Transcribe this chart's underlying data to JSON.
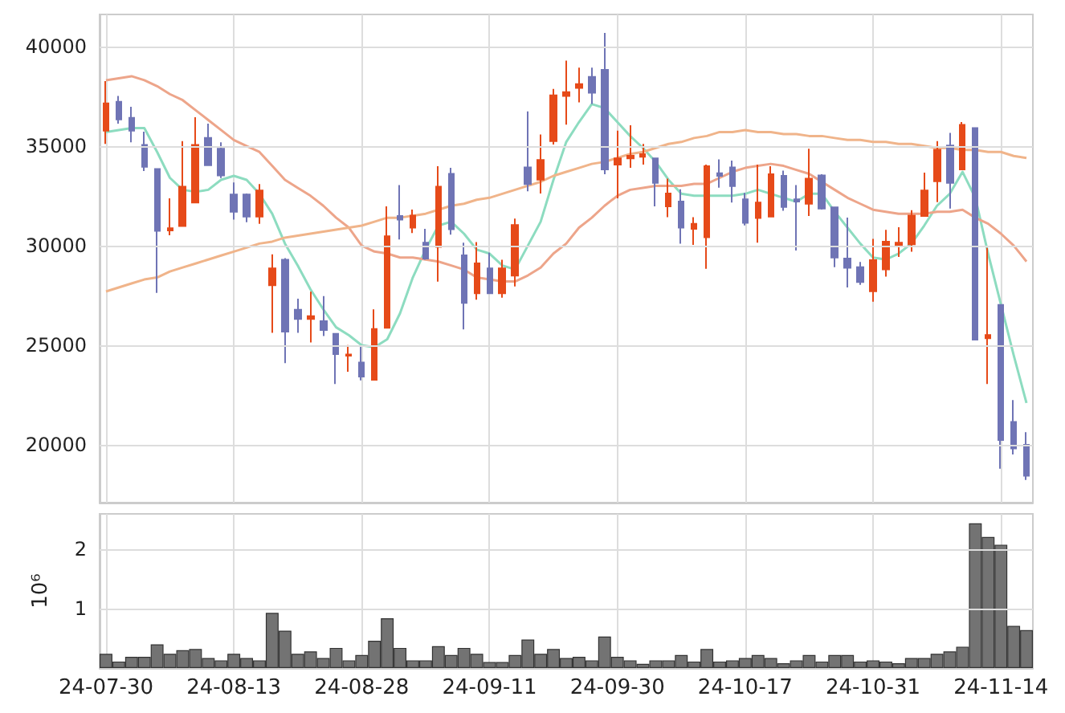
{
  "chart_data": [
    {
      "type": "candlestick",
      "categories": [
        null,
        null,
        null,
        null,
        null,
        null,
        null,
        null,
        null,
        null,
        null,
        null,
        null,
        null,
        null,
        null,
        null,
        null,
        null,
        null,
        null,
        null,
        null,
        null,
        null,
        null,
        null,
        null,
        null,
        null,
        null,
        null,
        null,
        null,
        null,
        null,
        null,
        null,
        null,
        null,
        null,
        null,
        null,
        null,
        null,
        null,
        null,
        null,
        null,
        null,
        null,
        null,
        null,
        null,
        null,
        null,
        null,
        null,
        null,
        null,
        null,
        null,
        null,
        null,
        null,
        null,
        null,
        null,
        null,
        null,
        null,
        null,
        null
      ],
      "ohlc": [
        [
          35770,
          38260,
          35100,
          37140
        ],
        [
          37220,
          37510,
          36120,
          36330
        ],
        [
          36410,
          36970,
          35180,
          35770
        ],
        [
          35050,
          35720,
          33740,
          33950
        ],
        [
          33840,
          33840,
          27630,
          30740
        ],
        [
          30760,
          32370,
          30520,
          30870
        ],
        [
          30980,
          35240,
          30980,
          32960
        ],
        [
          32160,
          36440,
          32160,
          35050
        ],
        [
          35400,
          36120,
          34030,
          34030
        ],
        [
          34860,
          35180,
          33390,
          33520
        ],
        [
          32560,
          33170,
          31300,
          31700
        ],
        [
          32560,
          32610,
          31170,
          31460
        ],
        [
          31460,
          33090,
          31090,
          32770
        ],
        [
          28010,
          29560,
          25620,
          28860
        ],
        [
          29290,
          29370,
          24100,
          25680
        ],
        [
          26780,
          27340,
          25620,
          26320
        ],
        [
          26320,
          27690,
          25140,
          26460
        ],
        [
          26210,
          27470,
          25460,
          25760
        ],
        [
          25570,
          25570,
          23050,
          24550
        ],
        [
          24470,
          25010,
          23670,
          24530
        ],
        [
          24130,
          24930,
          23240,
          23430
        ],
        [
          23270,
          26800,
          23270,
          25810
        ],
        [
          25870,
          31970,
          25870,
          30470
        ],
        [
          31490,
          33040,
          30310,
          31300
        ],
        [
          30900,
          31810,
          30630,
          31510
        ],
        [
          30150,
          30840,
          29290,
          29350
        ],
        [
          29930,
          33980,
          28190,
          32960
        ],
        [
          33600,
          33900,
          30550,
          30820
        ],
        [
          29510,
          30150,
          25790,
          27120
        ],
        [
          27610,
          30180,
          27280,
          29110
        ],
        [
          28860,
          29640,
          27610,
          27610
        ],
        [
          27610,
          29290,
          27390,
          28860
        ],
        [
          28490,
          31350,
          27950,
          31030
        ],
        [
          33920,
          36730,
          32720,
          33090
        ],
        [
          33310,
          35580,
          32610,
          34300
        ],
        [
          35240,
          37860,
          35070,
          37540
        ],
        [
          37510,
          39280,
          36070,
          37700
        ],
        [
          37910,
          38930,
          37190,
          38100
        ],
        [
          38470,
          38930,
          37110,
          37670
        ],
        [
          38820,
          40670,
          33580,
          33820
        ],
        [
          34060,
          35770,
          32370,
          34380
        ],
        [
          34380,
          36040,
          33900,
          34510
        ],
        [
          34460,
          35100,
          34060,
          34590
        ],
        [
          34380,
          34380,
          31970,
          33150
        ],
        [
          31970,
          33360,
          31430,
          32610
        ],
        [
          32210,
          32830,
          30100,
          30900
        ],
        [
          30840,
          31430,
          30040,
          31090
        ],
        [
          30420,
          34060,
          28840,
          33980
        ],
        [
          33630,
          34330,
          32910,
          33500
        ],
        [
          33920,
          34270,
          32160,
          32990
        ],
        [
          32320,
          32640,
          31010,
          31140
        ],
        [
          31380,
          34060,
          30150,
          32160
        ],
        [
          31460,
          33980,
          31460,
          33580
        ],
        [
          33500,
          33760,
          31750,
          31940
        ],
        [
          32320,
          33040,
          29750,
          32210
        ],
        [
          32100,
          34860,
          31490,
          33360
        ],
        [
          33520,
          33580,
          31810,
          31860
        ],
        [
          31920,
          31920,
          28920,
          29400
        ],
        [
          29350,
          31410,
          27900,
          28890
        ],
        [
          28920,
          29180,
          28030,
          28170
        ],
        [
          27710,
          30340,
          27180,
          29270
        ],
        [
          28810,
          30790,
          28440,
          30200
        ],
        [
          30040,
          30920,
          29430,
          30150
        ],
        [
          30070,
          31780,
          29690,
          31510
        ],
        [
          31490,
          33660,
          31490,
          32770
        ],
        [
          33230,
          35240,
          32180,
          34810
        ],
        [
          35020,
          35660,
          31860,
          33150
        ],
        [
          33820,
          36200,
          33820,
          36060
        ],
        [
          35900,
          35900,
          25280,
          25280
        ],
        [
          25350,
          29880,
          23050,
          25510
        ],
        [
          27020,
          27020,
          18800,
          20240
        ],
        [
          21150,
          22250,
          19520,
          19820
        ],
        [
          20000,
          20640,
          18240,
          18450
        ]
      ],
      "colors": [
        "#e64a19",
        "#6f74b5",
        "#6f74b5",
        "#6f74b5",
        "#6f74b5",
        "#e64a19",
        "#e64a19",
        "#e64a19",
        "#6f74b5",
        "#6f74b5",
        "#6f74b5",
        "#6f74b5",
        "#e64a19",
        "#e64a19",
        "#6f74b5",
        "#6f74b5",
        "#e64a19",
        "#6f74b5",
        "#6f74b5",
        "#e64a19",
        "#6f74b5",
        "#e64a19",
        "#e64a19",
        "#6f74b5",
        "#e64a19",
        "#6f74b5",
        "#e64a19",
        "#6f74b5",
        "#6f74b5",
        "#e64a19",
        "#6f74b5",
        "#e64a19",
        "#e64a19",
        "#6f74b5",
        "#e64a19",
        "#e64a19",
        "#e64a19",
        "#e64a19",
        "#6f74b5",
        "#6f74b5",
        "#e64a19",
        "#e64a19",
        "#e64a19",
        "#6f74b5",
        "#e64a19",
        "#6f74b5",
        "#e64a19",
        "#e64a19",
        "#6f74b5",
        "#6f74b5",
        "#6f74b5",
        "#e64a19",
        "#e64a19",
        "#6f74b5",
        "#6f74b5",
        "#e64a19",
        "#6f74b5",
        "#6f74b5",
        "#6f74b5",
        "#6f74b5",
        "#e64a19",
        "#e64a19",
        "#e64a19",
        "#e64a19",
        "#e64a19",
        "#e64a19",
        "#6f74b5",
        "#e64a19",
        "#6f74b5",
        "#e64a19",
        "#6f74b5",
        "#6f74b5",
        "#6f74b5"
      ],
      "series": [
        {
          "type": "line",
          "color": "#8ddcc0",
          "values": [
            35700,
            35800,
            35900,
            35900,
            34700,
            33400,
            32800,
            32700,
            32800,
            33300,
            33500,
            33300,
            32600,
            31600,
            30100,
            29000,
            27800,
            26800,
            25900,
            25500,
            25000,
            24900,
            25300,
            26600,
            28400,
            29800,
            31000,
            31200,
            30600,
            29800,
            29600,
            29000,
            28800,
            30000,
            31200,
            33300,
            35200,
            36200,
            37100,
            36900,
            36200,
            35500,
            34900,
            34200,
            33300,
            32600,
            32500,
            32500,
            32500,
            32500,
            32600,
            32800,
            32600,
            32400,
            32200,
            32600,
            32600,
            31700,
            30900,
            30100,
            29400,
            29300,
            29600,
            30100,
            31000,
            32000,
            32600,
            33700,
            32400,
            29600,
            null,
            24500,
            22100
          ]
        },
        {
          "type": "line",
          "color": "#eda58a",
          "values": [
            38300,
            38400,
            38500,
            38300,
            38000,
            37600,
            37300,
            36800,
            36300,
            35800,
            35300,
            35000,
            34700,
            34000,
            33300,
            32900,
            32500,
            32000,
            31400,
            30900,
            30000,
            29700,
            29600,
            29400,
            29400,
            29300,
            29200,
            29000,
            28800,
            28400,
            28300,
            28200,
            28200,
            28500,
            28900,
            29600,
            30100,
            30900,
            31400,
            32000,
            32500,
            32800,
            32900,
            33000,
            33000,
            33000,
            33100,
            33100,
            33400,
            33700,
            33900,
            34000,
            34100,
            34000,
            33800,
            33600,
            33200,
            32800,
            32400,
            32100,
            31800,
            31700,
            31600,
            31600,
            31600,
            31700,
            31700,
            31800,
            31400,
            31100,
            30600,
            30000,
            29200
          ]
        },
        {
          "type": "line",
          "color": "#f0b48a",
          "values": [
            27700,
            27900,
            28100,
            28300,
            28400,
            28700,
            28900,
            29100,
            29300,
            29500,
            29700,
            29900,
            30100,
            30200,
            30400,
            30500,
            30600,
            30700,
            30800,
            30900,
            31000,
            31200,
            31400,
            31400,
            31500,
            31600,
            31800,
            32000,
            32100,
            32300,
            32400,
            32600,
            32800,
            33000,
            33200,
            33500,
            33700,
            33900,
            34100,
            34200,
            34400,
            34600,
            34700,
            34900,
            35100,
            35200,
            35400,
            35500,
            35700,
            35700,
            35800,
            35700,
            35700,
            35600,
            35600,
            35500,
            35500,
            35400,
            35300,
            35300,
            35200,
            35200,
            35100,
            35100,
            35000,
            34900,
            34900,
            34800,
            34800,
            34700,
            34700,
            34500,
            34400
          ]
        }
      ],
      "ylim": [
        17100,
        41600
      ],
      "yticks": [
        20000,
        25000,
        30000,
        35000,
        40000
      ],
      "grid": true,
      "tick_labels": "y"
    },
    {
      "type": "bar",
      "categories": [
        "24-07-30",
        null,
        null,
        null,
        null,
        null,
        null,
        null,
        null,
        null,
        "24-08-13",
        null,
        null,
        null,
        null,
        null,
        null,
        null,
        null,
        null,
        "24-08-28",
        null,
        null,
        null,
        null,
        null,
        null,
        null,
        null,
        null,
        "24-09-11",
        null,
        null,
        null,
        null,
        null,
        null,
        null,
        null,
        null,
        "24-09-30",
        null,
        null,
        null,
        null,
        null,
        null,
        null,
        null,
        null,
        "24-10-17",
        null,
        null,
        null,
        null,
        null,
        null,
        null,
        null,
        null,
        "24-10-31",
        null,
        null,
        null,
        null,
        null,
        null,
        null,
        null,
        null,
        "24-11-14",
        null,
        null
      ],
      "values": [
        0.24,
        0.11,
        0.19,
        0.19,
        0.4,
        0.24,
        0.3,
        0.32,
        0.17,
        0.13,
        0.24,
        0.17,
        0.13,
        0.93,
        0.63,
        0.24,
        0.28,
        0.17,
        0.34,
        0.13,
        0.22,
        0.46,
        0.84,
        0.34,
        0.13,
        0.13,
        0.37,
        0.22,
        0.34,
        0.24,
        0.1,
        0.1,
        0.22,
        0.48,
        0.24,
        0.32,
        0.17,
        0.19,
        0.13,
        0.53,
        0.19,
        0.13,
        0.07,
        0.13,
        0.13,
        0.22,
        0.11,
        0.32,
        0.11,
        0.13,
        0.17,
        0.22,
        0.17,
        0.08,
        0.13,
        0.22,
        0.11,
        0.22,
        0.22,
        0.11,
        0.13,
        0.11,
        0.08,
        0.17,
        0.17,
        0.24,
        0.28,
        0.36,
        2.44,
        2.21,
        2.08,
        0.71,
        0.64
      ],
      "color": "#737373",
      "ylabel": "10⁶",
      "ylim": [
        0,
        2.6
      ],
      "yticks": [
        1,
        2
      ],
      "grid": true
    }
  ]
}
